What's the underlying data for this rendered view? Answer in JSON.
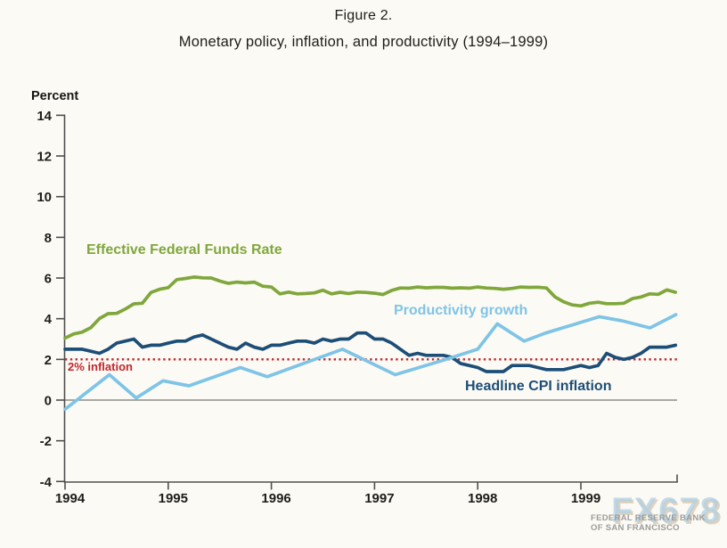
{
  "title": "Figure 2.",
  "subtitle": "Monetary policy, inflation, and productivity (1994–1999)",
  "y_axis_label": "Percent",
  "watermark": {
    "text": "FX678",
    "attribution_line1": "FEDERAL RESERVE BANK",
    "attribution_line2": "OF SAN FRANCISCO"
  },
  "colors": {
    "background": "#fcfaf4",
    "axis": "#4f4f4f",
    "zero_line": "#8b8b86",
    "reference_red": "#c1272d",
    "ffr_green": "#7fa73c",
    "cpi_dark_blue": "#1d4e77",
    "productivity_light_blue": "#7ec4e7"
  },
  "chart_data": {
    "type": "line",
    "title": "Figure 2.",
    "subtitle": "Monetary policy, inflation, and productivity (1994–1999)",
    "ylabel": "Percent",
    "xlabel": "",
    "ylim": [
      -4,
      14
    ],
    "xlim": [
      1994,
      1999.95
    ],
    "grid": false,
    "legend_position": "inline-annotations",
    "y_ticks": [
      14,
      12,
      10,
      8,
      6,
      4,
      2,
      0,
      -2,
      -4
    ],
    "y_tick_labels": [
      "14",
      "12",
      "10",
      "8",
      "6",
      "4",
      "2",
      "0",
      "-2",
      "-4"
    ],
    "x_ticks": [
      1994,
      1995,
      1996,
      1997,
      1998,
      1999
    ],
    "x_tick_labels": [
      "1994",
      "1995",
      "1996",
      "1997",
      "1998",
      "1999"
    ],
    "reference_lines": [
      {
        "label": "2% inflation",
        "value": 2,
        "color": "#c1272d",
        "style": "dotted"
      },
      {
        "label": "zero line",
        "value": 0,
        "color": "#8b8b86",
        "style": "solid"
      }
    ],
    "series": [
      {
        "name": "Effective Federal Funds Rate",
        "color": "#7fa73c",
        "frequency": "monthly",
        "start_year": 1994,
        "values": [
          3.05,
          3.25,
          3.34,
          3.56,
          4.01,
          4.25,
          4.26,
          4.47,
          4.73,
          4.76,
          5.29,
          5.45,
          5.53,
          5.92,
          5.98,
          6.05,
          6.01,
          6.0,
          5.85,
          5.74,
          5.8,
          5.76,
          5.8,
          5.6,
          5.56,
          5.22,
          5.31,
          5.22,
          5.24,
          5.27,
          5.4,
          5.22,
          5.3,
          5.24,
          5.31,
          5.29,
          5.25,
          5.19,
          5.39,
          5.51,
          5.5,
          5.56,
          5.52,
          5.54,
          5.54,
          5.5,
          5.52,
          5.5,
          5.56,
          5.51,
          5.49,
          5.45,
          5.49,
          5.56,
          5.54,
          5.55,
          5.51,
          5.07,
          4.83,
          4.68,
          4.63,
          4.76,
          4.81,
          4.74,
          4.74,
          4.76,
          4.99,
          5.07,
          5.22,
          5.2,
          5.42,
          5.3
        ]
      },
      {
        "name": "Headline CPI inflation",
        "color": "#1d4e77",
        "frequency": "monthly",
        "start_year": 1994,
        "values": [
          2.5,
          2.5,
          2.5,
          2.4,
          2.3,
          2.5,
          2.8,
          2.9,
          3.0,
          2.6,
          2.7,
          2.7,
          2.8,
          2.9,
          2.9,
          3.1,
          3.2,
          3.0,
          2.8,
          2.6,
          2.5,
          2.8,
          2.6,
          2.5,
          2.7,
          2.7,
          2.8,
          2.9,
          2.9,
          2.8,
          3.0,
          2.9,
          3.0,
          3.0,
          3.3,
          3.3,
          3.0,
          3.0,
          2.8,
          2.5,
          2.2,
          2.3,
          2.2,
          2.2,
          2.2,
          2.1,
          1.8,
          1.7,
          1.6,
          1.4,
          1.4,
          1.4,
          1.7,
          1.7,
          1.7,
          1.6,
          1.5,
          1.5,
          1.5,
          1.6,
          1.7,
          1.6,
          1.7,
          2.3,
          2.1,
          2.0,
          2.1,
          2.3,
          2.6,
          2.6,
          2.6,
          2.7
        ]
      },
      {
        "name": "Productivity growth",
        "color": "#7ec4e7",
        "frequency": "quarterly",
        "points": [
          [
            1994.0,
            -0.45
          ],
          [
            1994.43,
            1.25
          ],
          [
            1994.69,
            0.1
          ],
          [
            1994.95,
            0.95
          ],
          [
            1995.2,
            0.7
          ],
          [
            1995.7,
            1.6
          ],
          [
            1995.96,
            1.15
          ],
          [
            1996.69,
            2.5
          ],
          [
            1997.2,
            1.25
          ],
          [
            1997.66,
            1.95
          ],
          [
            1998.0,
            2.5
          ],
          [
            1998.19,
            3.75
          ],
          [
            1998.45,
            2.9
          ],
          [
            1998.66,
            3.3
          ],
          [
            1999.18,
            4.1
          ],
          [
            1999.4,
            3.9
          ],
          [
            1999.67,
            3.55
          ],
          [
            1999.92,
            4.2
          ]
        ]
      }
    ]
  }
}
